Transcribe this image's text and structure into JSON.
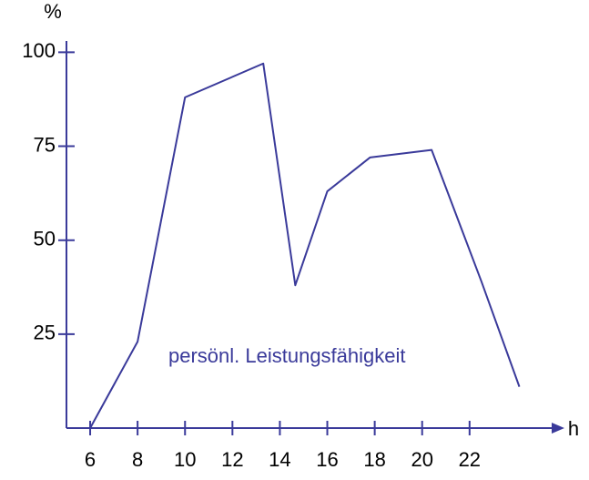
{
  "chart_data": {
    "type": "line",
    "y_label": "%",
    "x_label": "h",
    "x": [
      6,
      8,
      10,
      13.3,
      14.65,
      16,
      17.8,
      20.4,
      22.5,
      24.1
    ],
    "series": [
      {
        "name": "persönl. Leistungsfähigkeit",
        "color": "#3a3a9a",
        "values": [
          0,
          23,
          88,
          97,
          38,
          63,
          72,
          74,
          39,
          11
        ]
      }
    ],
    "xlim": [
      5,
      26
    ],
    "ylim": [
      0,
      103
    ],
    "xticks": [
      6,
      8,
      10,
      12,
      14,
      16,
      18,
      20,
      22
    ],
    "yticks": [
      25,
      50,
      75,
      100
    ],
    "grid": false
  }
}
